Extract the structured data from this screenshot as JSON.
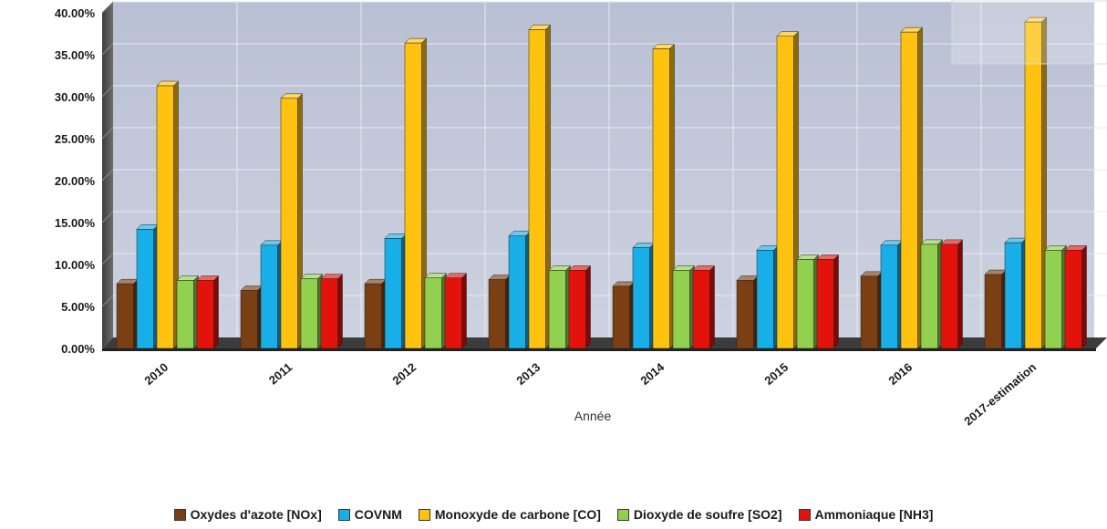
{
  "chart_data": {
    "type": "bar",
    "categories": [
      "2010",
      "2011",
      "2012",
      "2013",
      "2014",
      "2015",
      "2016",
      "2017-estimation"
    ],
    "series": [
      {
        "name": "Oxydes d'azote [NOx]",
        "color": "#7a3f12",
        "values": [
          7.7,
          6.9,
          7.7,
          8.2,
          7.4,
          8.1,
          8.6,
          8.8
        ]
      },
      {
        "name": "COVNM",
        "color": "#18aee8",
        "values": [
          14.2,
          12.3,
          13.1,
          13.4,
          12.0,
          11.7,
          12.3,
          12.6
        ]
      },
      {
        "name": "Monoxyde de carbone [CO]",
        "color": "#ffc20e",
        "values": [
          31.3,
          29.8,
          36.4,
          38.0,
          35.7,
          37.2,
          37.7,
          38.9
        ]
      },
      {
        "name": "Dioxyde de soufre [SO2]",
        "color": "#92d050",
        "values": [
          8.1,
          8.3,
          8.4,
          9.3,
          9.3,
          10.6,
          12.4,
          11.7
        ]
      },
      {
        "name": "Ammoniaque [NH3]",
        "color": "#e3120b",
        "values": [
          8.1,
          8.3,
          8.4,
          9.3,
          9.3,
          10.6,
          12.4,
          11.7
        ]
      }
    ],
    "y_ticks": [
      "0.00%",
      "5.00%",
      "10.00%",
      "15.00%",
      "20.00%",
      "25.00%",
      "30.00%",
      "35.00%",
      "40.00%"
    ],
    "ylim": [
      0,
      40
    ],
    "xlabel": "Année",
    "ylabel": "",
    "grid": true,
    "legend_position": "bottom"
  }
}
